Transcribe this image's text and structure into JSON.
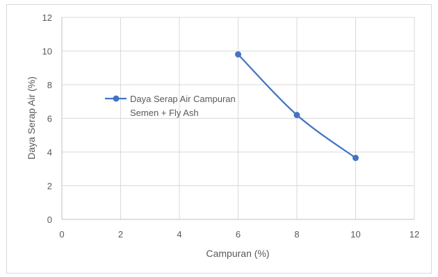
{
  "chart_data": {
    "type": "scatter",
    "title": "",
    "xlabel": "Campuran (%)",
    "ylabel": "Daya Serap Air (%)",
    "xlim": [
      0,
      12
    ],
    "ylim": [
      0,
      12
    ],
    "xticks": [
      0,
      2,
      4,
      6,
      8,
      10,
      12
    ],
    "yticks": [
      0,
      2,
      4,
      6,
      8,
      10,
      12
    ],
    "grid": true,
    "legend_position": "left-middle",
    "series": [
      {
        "name": "Daya Serap Air Campuran Semen + Fly Ash",
        "name_lines": [
          "Daya Serap Air Campuran",
          "Semen + Fly Ash"
        ],
        "color": "#4472c4",
        "marker": "circle",
        "smooth": true,
        "x": [
          6,
          8,
          10
        ],
        "y": [
          9.8,
          6.2,
          3.65
        ]
      }
    ]
  }
}
